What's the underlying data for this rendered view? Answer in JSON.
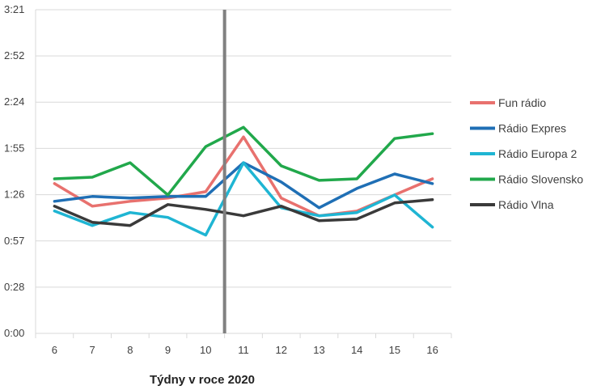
{
  "chart_data": {
    "type": "line",
    "xlabel": "Týdny v roce 2020",
    "ylabel": "",
    "categories": [
      "6",
      "7",
      "8",
      "9",
      "10",
      "11",
      "12",
      "13",
      "14",
      "15",
      "16"
    ],
    "y_tick_labels": [
      "0:00",
      "0:28",
      "0:57",
      "1:26",
      "1:55",
      "2:24",
      "2:52",
      "3:21"
    ],
    "y_unit": "minutes",
    "ylim": [
      0,
      201
    ],
    "y_ticks": [
      0,
      28.7,
      57.4,
      86.1,
      114.9,
      143.6,
      172.3,
      201
    ],
    "grid": "horizontal",
    "legend_position": "right",
    "vertical_marker_after_category": "10",
    "marker_color": "#808080",
    "series": [
      {
        "name": "Fun rádio",
        "color": "#e8716e",
        "values": [
          93,
          79,
          82,
          84,
          88,
          122,
          84,
          73,
          76,
          86,
          96
        ]
      },
      {
        "name": "Rádio Expres",
        "color": "#1f6fb5",
        "values": [
          82,
          85,
          84,
          85,
          85,
          106,
          94,
          78,
          90,
          99,
          93
        ]
      },
      {
        "name": "Rádio Europa 2",
        "color": "#1fb5d3",
        "values": [
          76,
          67,
          75,
          72,
          61,
          106,
          78,
          73,
          75,
          86,
          66
        ]
      },
      {
        "name": "Rádio Slovensko",
        "color": "#21a84b",
        "values": [
          96,
          97,
          106,
          86,
          116,
          128,
          104,
          95,
          96,
          121,
          124
        ]
      },
      {
        "name": "Rádio Vlna",
        "color": "#3a3a3a",
        "values": [
          79,
          69,
          67,
          80,
          77,
          73,
          79,
          70,
          71,
          81,
          83
        ]
      }
    ]
  }
}
